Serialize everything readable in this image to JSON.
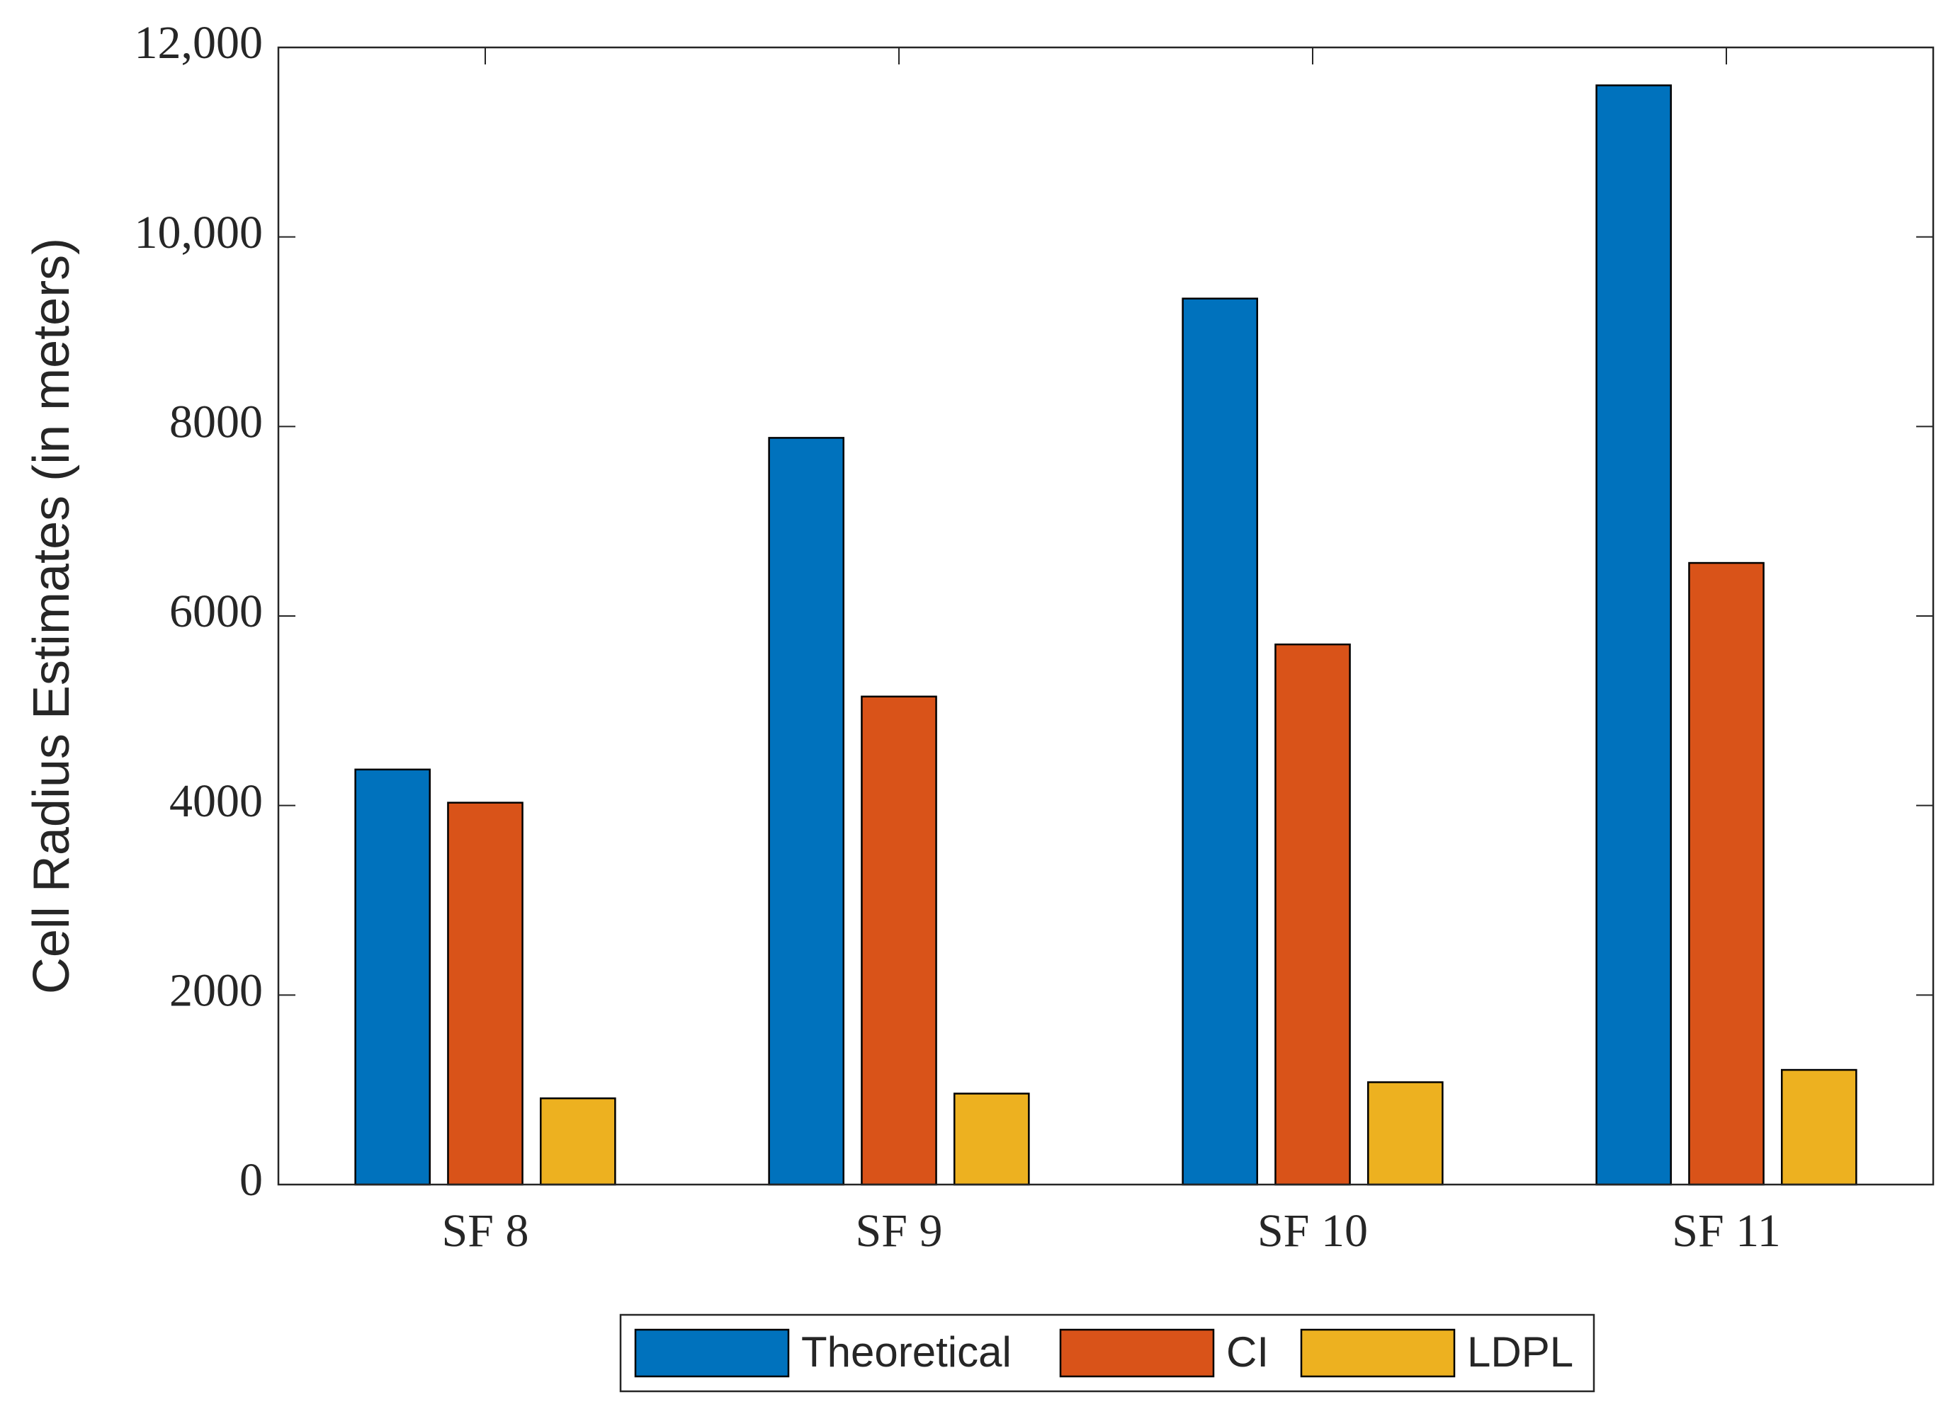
{
  "chart_data": {
    "type": "bar",
    "y_label": "Cell Radius Estimates (in meters)",
    "categories": [
      "SF 8",
      "SF 9",
      "SF 10",
      "SF 11"
    ],
    "series": [
      {
        "name": "Theoretical",
        "color": "#0072bd",
        "values": [
          4380,
          7880,
          9350,
          11600
        ]
      },
      {
        "name": "CI",
        "color": "#d95319",
        "values": [
          4030,
          5150,
          5700,
          6560
        ]
      },
      {
        "name": "LDPL",
        "color": "#edb120",
        "values": [
          910,
          960,
          1080,
          1210
        ]
      }
    ],
    "ylim": [
      0,
      12000
    ],
    "yticks": [
      0,
      2000,
      4000,
      6000,
      8000,
      {
        "value": 10000,
        "label": "10,000"
      },
      {
        "value": 12000,
        "label": "12,000"
      }
    ],
    "grid": false,
    "legend": "bottom"
  }
}
